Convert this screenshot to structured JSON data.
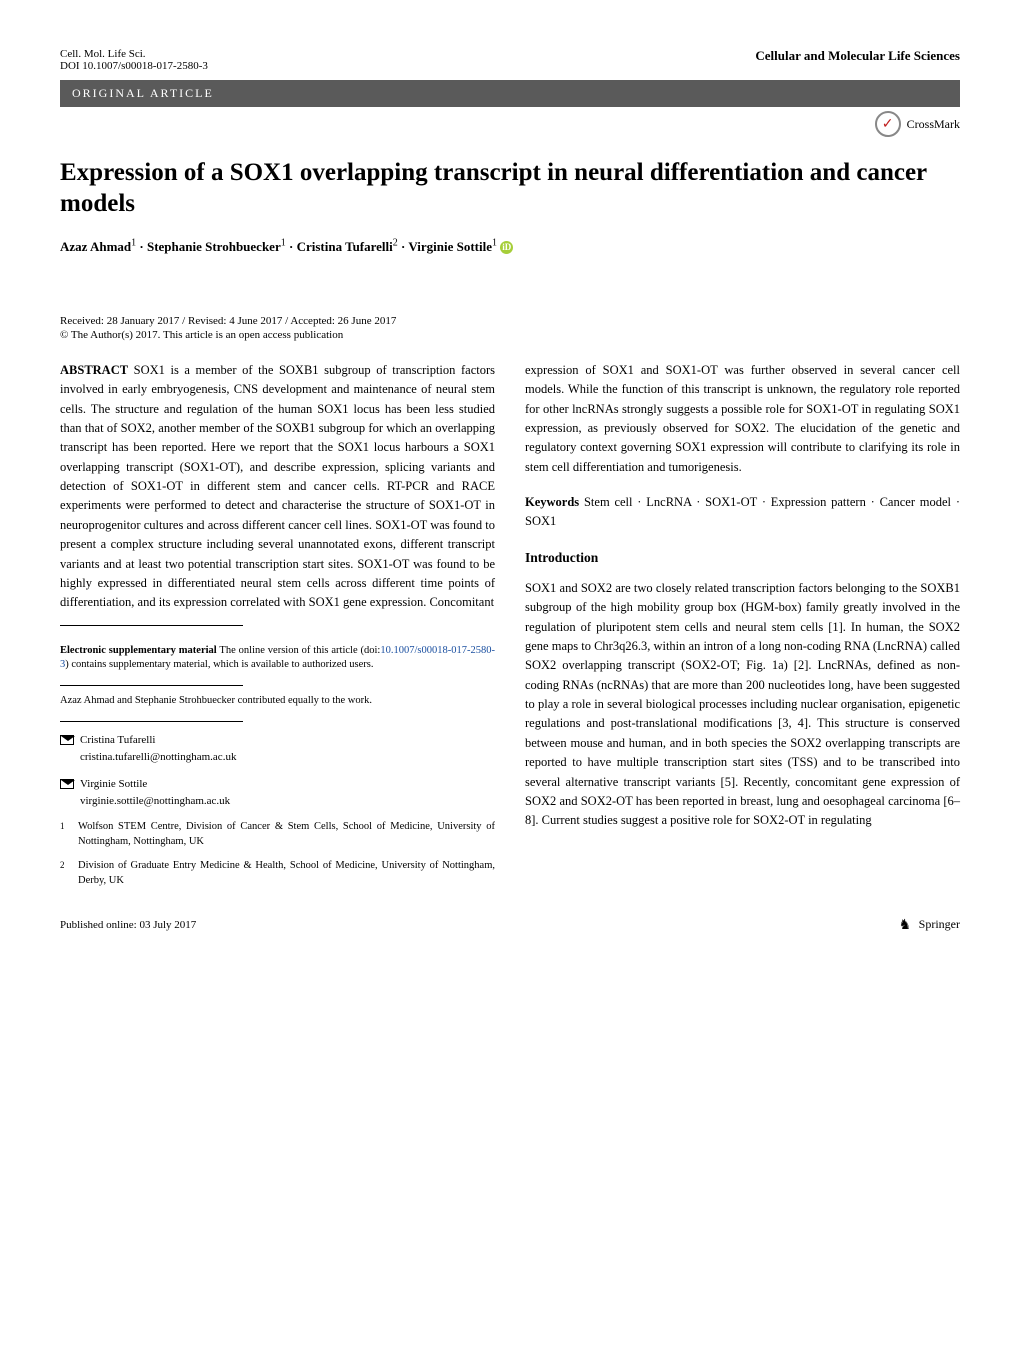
{
  "header": {
    "journal_abbrev": "Cell. Mol. Life Sci.",
    "doi": "DOI 10.1007/s00018-017-2580-3",
    "journal_name": "Cellular and Molecular Life Sciences",
    "article_type": "ORIGINAL ARTICLE",
    "crossmark": "CrossMark"
  },
  "title": "Expression of a SOX1 overlapping transcript in neural differentiation and cancer models",
  "authors_html": "Azaz Ahmad<sup>1</sup> · Stephanie Strohbuecker<sup>1</sup> · Cristina Tufarelli<sup>2</sup> · Virginie Sottile<sup>1</sup>",
  "received": "Received: 28 January 2017 / Revised: 4 June 2017 / Accepted: 26 June 2017",
  "copyright": "© The Author(s) 2017. This article is an open access publication",
  "abstract_label": "ABSTRACT",
  "abstract_text_1": " SOX1 is a member of the SOXB1 subgroup of transcription factors involved in early embryogenesis, CNS development and maintenance of neural stem cells. The structure and regulation of the human SOX1 locus has been less studied than that of SOX2, another member of the SOXB1 subgroup for which an overlapping transcript has been reported. Here we report that the SOX1 locus harbours a SOX1 overlapping transcript (SOX1-OT), and describe expression, splicing variants and detection of SOX1-OT in different stem and cancer cells. RT-PCR and RACE experiments were performed to detect and characterise the structure of SOX1-OT in neuroprogenitor cultures and across different cancer cell lines. SOX1-OT was found to present a complex structure including several unannotated exons, different transcript variants and at least two potential transcription start sites. SOX1-OT was found to be highly expressed in differentiated neural stem cells across different time points of differentiation, and its expression correlated with SOX1 gene expression. Concomitant",
  "abstract_text_2": "expression of SOX1 and SOX1-OT was further observed in several cancer cell models. While the function of this transcript is unknown, the regulatory role reported for other lncRNAs strongly suggests a possible role for SOX1-OT in regulating SOX1 expression, as previously observed for SOX2. The elucidation of the genetic and regulatory context governing SOX1 expression will contribute to clarifying its role in stem cell differentiation and tumorigenesis.",
  "keywords_label": "Keywords",
  "keywords_text": " Stem cell · LncRNA · SOX1-OT · Expression pattern · Cancer model · SOX1",
  "intro_heading": "Introduction",
  "intro_text": "SOX1 and SOX2 are two closely related transcription factors belonging to the SOXB1 subgroup of the high mobility group box (HGM-box) family greatly involved in the regulation of pluripotent stem cells and neural stem cells [1]. In human, the SOX2 gene maps to Chr3q26.3, within an intron of a long non-coding RNA (LncRNA) called SOX2 overlapping transcript (SOX2-OT; Fig. 1a) [2]. LncRNAs, defined as non-coding RNAs (ncRNAs) that are more than 200 nucleotides long, have been suggested to play a role in several biological processes including nuclear organisation, epigenetic regulations and post-translational modifications [3, 4]. This structure is conserved between mouse and human, and in both species the SOX2 overlapping transcripts are reported to have multiple transcription start sites (TSS) and to be transcribed into several alternative transcript variants [5]. Recently, concomitant gene expression of SOX2 and SOX2-OT has been reported in breast, lung and oesophageal carcinoma [6–8]. Current studies suggest a positive role for SOX2-OT in regulating",
  "supp": {
    "bold": "Electronic supplementary material",
    "text": " The online version of this article (doi:",
    "link": "10.1007/s00018-017-2580-3",
    "tail": ") contains supplementary material, which is available to authorized users."
  },
  "contrib": "Azaz Ahmad and Stephanie Strohbuecker contributed equally to the work.",
  "corr": [
    {
      "name": "Cristina Tufarelli",
      "email": "cristina.tufarelli@nottingham.ac.uk"
    },
    {
      "name": "Virginie Sottile",
      "email": "virginie.sottile@nottingham.ac.uk"
    }
  ],
  "affiliations": [
    {
      "num": "1",
      "text": "Wolfson STEM Centre, Division of Cancer & Stem Cells, School of Medicine, University of Nottingham, Nottingham, UK"
    },
    {
      "num": "2",
      "text": "Division of Graduate Entry Medicine & Health, School of Medicine, University of Nottingham, Derby, UK"
    }
  ],
  "footer": {
    "published": "Published online: 03 July 2017",
    "publisher": "Springer"
  }
}
